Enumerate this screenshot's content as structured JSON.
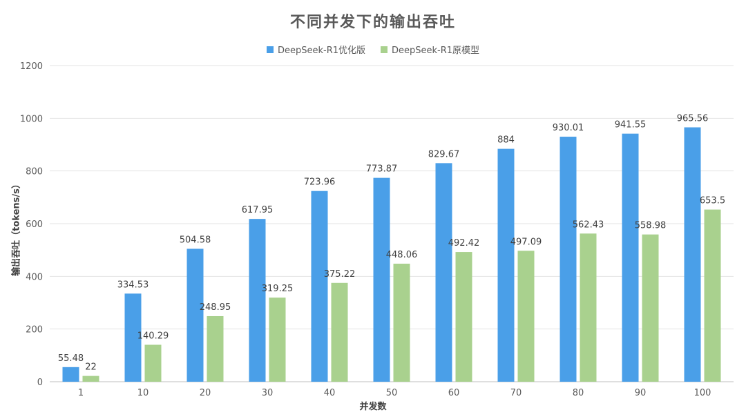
{
  "chart_data": {
    "type": "bar",
    "title": "不同并发下的输出吞吐",
    "xlabel": "并发数",
    "ylabel": "输出吞吐（tokens/s）",
    "categories": [
      "1",
      "10",
      "20",
      "30",
      "40",
      "50",
      "60",
      "70",
      "80",
      "90",
      "100"
    ],
    "ylim": [
      0,
      1200
    ],
    "yticks": [
      0,
      200,
      400,
      600,
      800,
      1000,
      1200
    ],
    "grid": true,
    "legend_position": "top-center",
    "series": [
      {
        "name": "DeepSeek-R1优化版",
        "color": "#4a9fe8",
        "values": [
          55.48,
          334.53,
          504.58,
          617.95,
          723.96,
          773.87,
          829.67,
          884,
          930.01,
          941.55,
          965.56
        ]
      },
      {
        "name": "DeepSeek-R1原模型",
        "color": "#a9d18e",
        "values": [
          22,
          140.29,
          248.95,
          319.25,
          375.22,
          448.06,
          492.42,
          497.09,
          562.43,
          558.98,
          653.5
        ]
      }
    ]
  }
}
